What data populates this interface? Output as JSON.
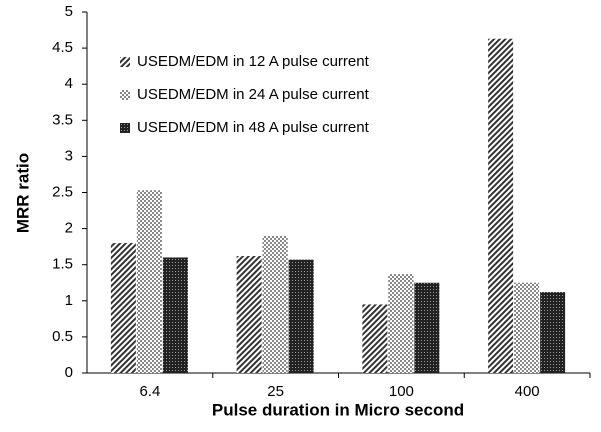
{
  "chart_data": {
    "type": "bar",
    "x_label": "Pulse duration in Micro second",
    "y_label": "MRR ratio",
    "categories": [
      "6.4",
      "25",
      "100",
      "400"
    ],
    "series": [
      {
        "name": "USEDM/EDM in 12 A pulse current",
        "color": "#333333",
        "values": [
          1.8,
          1.62,
          0.95,
          4.63
        ]
      },
      {
        "name": "USEDM/EDM in 24 A pulse current",
        "color": "#333333",
        "values": [
          2.53,
          1.9,
          1.37,
          1.25
        ]
      },
      {
        "name": "USEDM/EDM in 48 A pulse current",
        "color": "#222222",
        "values": [
          1.6,
          1.57,
          1.25,
          1.12
        ]
      }
    ],
    "ylim": [
      0,
      5
    ],
    "yticks": [
      0,
      0.5,
      1,
      1.5,
      2,
      2.5,
      3,
      3.5,
      4,
      4.5,
      5
    ],
    "grid": false,
    "legend": "upper-left"
  }
}
